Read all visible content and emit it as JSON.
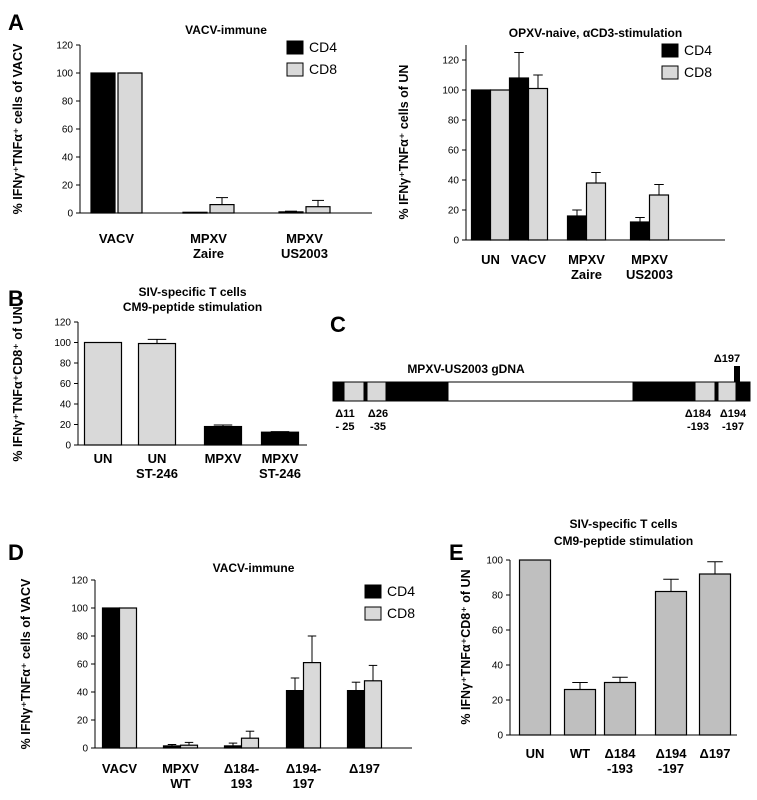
{
  "colors": {
    "black": "#000000",
    "light_gray": "#d9d9d9",
    "mid_gray": "#bfbfbf",
    "white": "#ffffff"
  },
  "chart_data": [
    {
      "id": "A-left",
      "panel": "A",
      "type": "bar",
      "title": "VACV-immune",
      "ylabel": "% IFNγ⁺TNFα⁺ cells of VACV",
      "ylim": [
        0,
        120
      ],
      "yticks": [
        0,
        20,
        40,
        60,
        80,
        100,
        120
      ],
      "categories": [
        [
          "VACV"
        ],
        [
          "MPXV",
          "Zaire"
        ],
        [
          "MPXV",
          "US2003"
        ]
      ],
      "series": [
        {
          "name": "CD4",
          "color": "#000000",
          "values": [
            100,
            0.5,
            0.8
          ],
          "errors": [
            0,
            0,
            0.5
          ]
        },
        {
          "name": "CD8",
          "color": "#d9d9d9",
          "values": [
            100,
            6,
            4.5
          ],
          "errors": [
            0,
            5,
            4.5
          ]
        }
      ],
      "legend": "top-right"
    },
    {
      "id": "A-right",
      "panel": "",
      "type": "bar",
      "title": "OPXV-naive, αCD3-stimulation",
      "ylabel": "% IFNγ⁺TNFα⁺ cells of UN",
      "ylim": [
        0,
        130
      ],
      "yticks": [
        0,
        20,
        40,
        60,
        80,
        100,
        120
      ],
      "categories": [
        [
          "UN"
        ],
        [
          "VACV"
        ],
        [
          "MPXV",
          "Zaire"
        ],
        [
          "MPXV",
          "US2003"
        ]
      ],
      "series": [
        {
          "name": "CD4",
          "color": "#000000",
          "values": [
            100,
            108,
            16,
            12
          ],
          "errors": [
            0,
            17,
            4,
            3
          ]
        },
        {
          "name": "CD8",
          "color": "#d9d9d9",
          "values": [
            100,
            101,
            38,
            30
          ],
          "errors": [
            0,
            9,
            7,
            7
          ]
        }
      ],
      "legend": "top-right"
    },
    {
      "id": "B",
      "panel": "B",
      "type": "bar",
      "title": "SIV-specific T cells|CM9-peptide stimulation",
      "ylabel": "% IFNγ⁺TNFα⁺CD8⁺ of UN",
      "ylim": [
        0,
        120
      ],
      "yticks": [
        0,
        20,
        40,
        60,
        80,
        100,
        120
      ],
      "categories": [
        [
          "UN"
        ],
        [
          "UN",
          "ST-246"
        ],
        [
          "MPXV"
        ],
        [
          "MPXV",
          "ST-246"
        ]
      ],
      "series": [
        {
          "name": "",
          "values": [
            100,
            99,
            18,
            12.5
          ],
          "errors": [
            0,
            4,
            1.5,
            0.5
          ],
          "colors": [
            "#d9d9d9",
            "#d9d9d9",
            "#000000",
            "#000000"
          ]
        }
      ]
    },
    {
      "id": "D",
      "panel": "D",
      "type": "bar",
      "title": "VACV-immune",
      "ylabel": "% IFNγ⁺TNFα⁺ cells of VACV",
      "ylim": [
        0,
        120
      ],
      "yticks": [
        0,
        20,
        40,
        60,
        80,
        100,
        120
      ],
      "categories": [
        [
          "VACV"
        ],
        [
          "MPXV",
          "WT"
        ],
        [
          "Δ184-",
          "193"
        ],
        [
          "Δ194-",
          "197"
        ],
        [
          "Δ197"
        ]
      ],
      "series": [
        {
          "name": "CD4",
          "color": "#000000",
          "values": [
            100,
            1.5,
            1.5,
            41,
            41
          ],
          "errors": [
            0,
            1,
            2,
            9,
            6
          ]
        },
        {
          "name": "CD8",
          "color": "#d9d9d9",
          "values": [
            100,
            2,
            7,
            61,
            48
          ],
          "errors": [
            0,
            2,
            5,
            19,
            11
          ]
        }
      ],
      "legend": "top-right"
    },
    {
      "id": "E",
      "panel": "E",
      "type": "bar",
      "title": "SIV-specific T cells|CM9-peptide stimulation",
      "ylabel": "% IFNγ⁺TNFα⁺CD8⁺ of UN",
      "ylim": [
        0,
        100
      ],
      "yticks": [
        0,
        20,
        40,
        60,
        80,
        100
      ],
      "categories": [
        [
          "UN"
        ],
        [
          "WT"
        ],
        [
          "Δ184",
          "-193"
        ],
        [
          "Δ194",
          "-197"
        ],
        [
          "Δ197"
        ]
      ],
      "series": [
        {
          "name": "",
          "color": "#bfbfbf",
          "values": [
            100,
            26,
            30,
            82,
            92
          ],
          "errors": [
            0,
            4,
            3,
            7,
            7
          ]
        }
      ]
    }
  ],
  "panel_c": {
    "letter": "C",
    "title": "MPXV-US2003 gDNA",
    "top_label": "Δ197",
    "labels": [
      {
        "lines": [
          "Δ11",
          "- 25"
        ]
      },
      {
        "lines": [
          "Δ26",
          "-35"
        ]
      },
      {
        "lines": [
          "Δ184",
          "-193"
        ]
      },
      {
        "lines": [
          "Δ194",
          "-197"
        ]
      }
    ]
  }
}
